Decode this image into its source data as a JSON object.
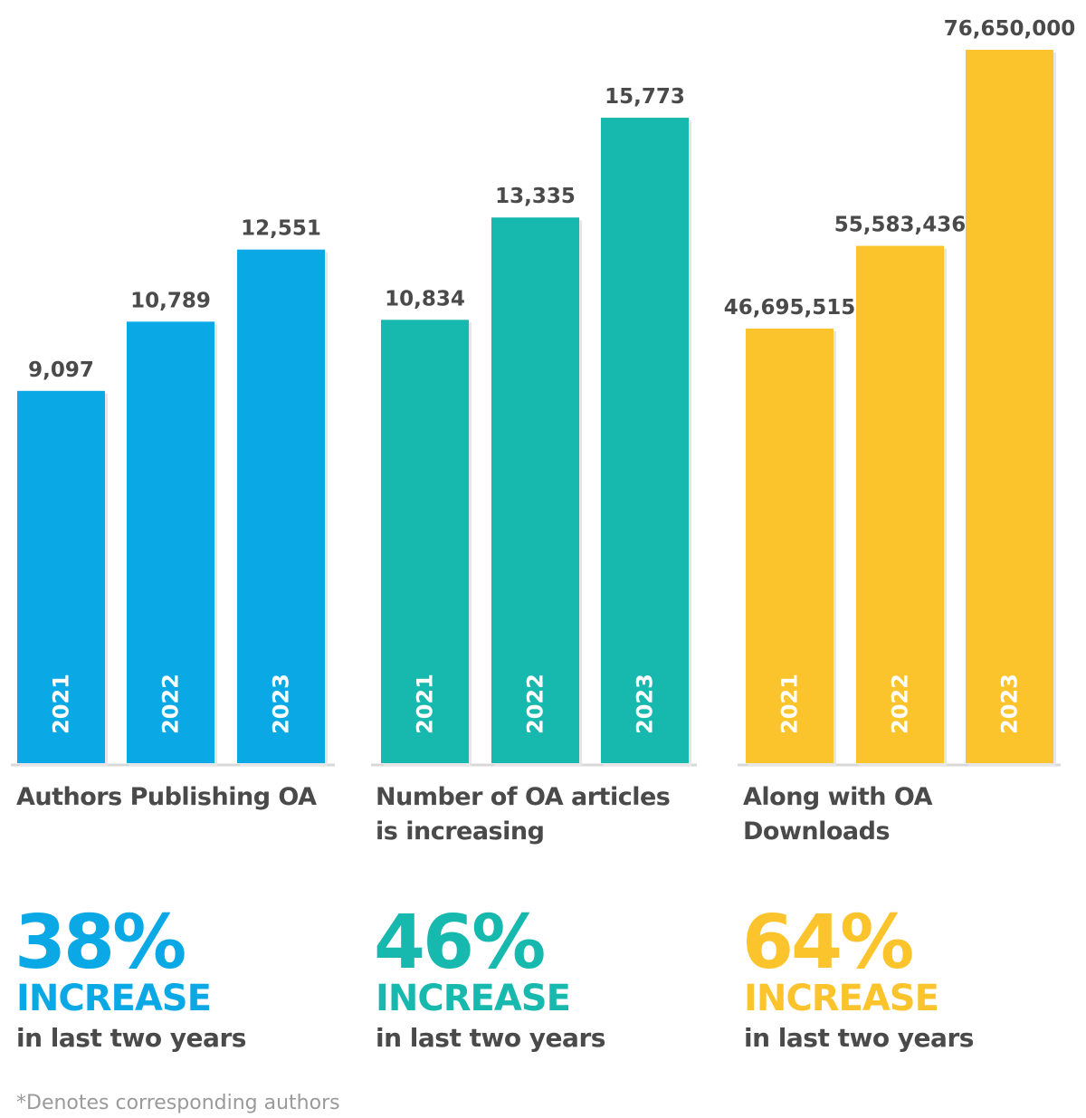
{
  "chart_data": [
    {
      "type": "bar",
      "categories": [
        "2021",
        "2022",
        "2023"
      ],
      "values": [
        9097,
        10789,
        12551
      ],
      "value_labels": [
        "9,097",
        "10,789",
        "12,551"
      ],
      "caption": "Authors Publishing OA",
      "color": "#0AA9E6",
      "ylim": [
        0,
        18650
      ]
    },
    {
      "type": "bar",
      "categories": [
        "2021",
        "2022",
        "2023"
      ],
      "values": [
        10834,
        13335,
        15773
      ],
      "value_labels": [
        "10,834",
        "13,335",
        "15,773"
      ],
      "caption": "Number of OA articles is increasing",
      "color": "#17B9AE",
      "ylim": [
        0,
        18650
      ]
    },
    {
      "type": "bar",
      "categories": [
        "2021",
        "2022",
        "2023"
      ],
      "values": [
        46695515,
        55583436,
        76650000
      ],
      "value_labels": [
        "46,695,515",
        "55,583,436",
        "76,650,000"
      ],
      "caption": "Along with OA Downloads",
      "color": "#FCC42C",
      "ylim": [
        0,
        82000000
      ]
    }
  ],
  "stats": [
    {
      "percent": "38%",
      "increase": "INCREASE",
      "period": "in last two years"
    },
    {
      "percent": "46%",
      "increase": "INCREASE",
      "period": "in last two years"
    },
    {
      "percent": "64%",
      "increase": "INCREASE",
      "period": "in last two years"
    }
  ],
  "captions": [
    {
      "line1": "Authors Publishing OA",
      "line2": ""
    },
    {
      "line1": "Number of OA articles",
      "line2": "is increasing"
    },
    {
      "line1": "Along with OA",
      "line2": "Downloads"
    }
  ],
  "footnote": "*Denotes corresponding authors",
  "text_color": "#4a4a4a"
}
